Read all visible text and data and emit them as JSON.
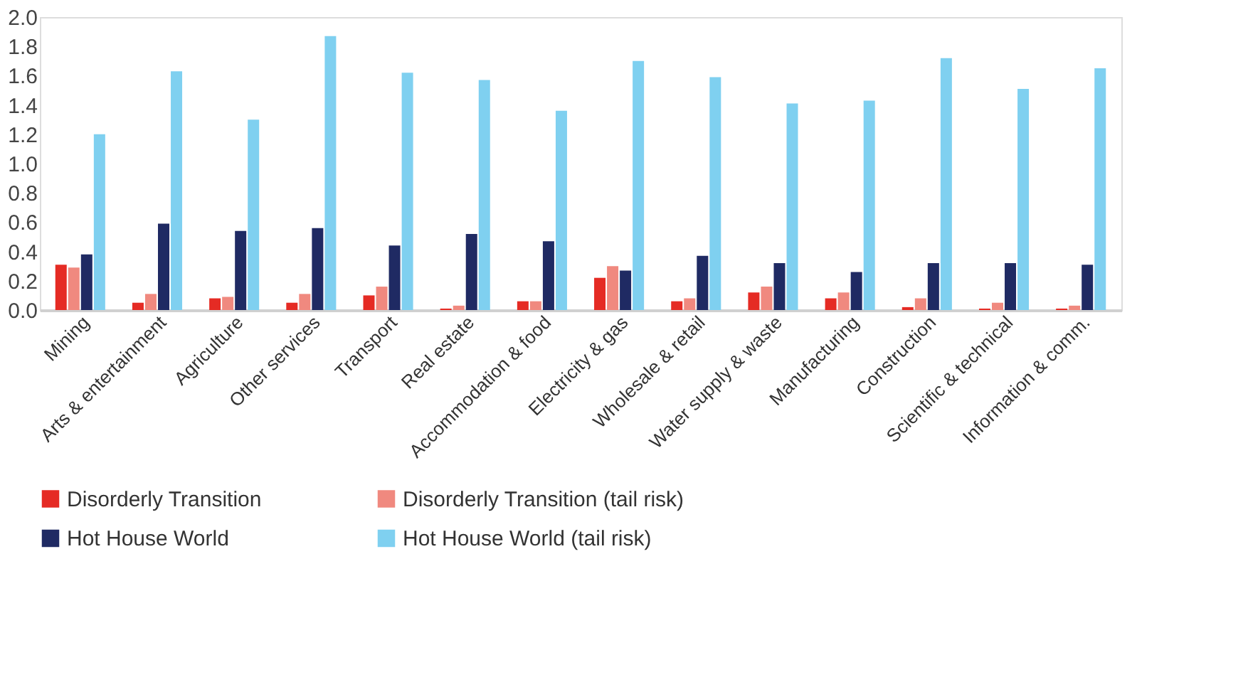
{
  "chart_data": {
    "type": "bar",
    "categories": [
      "Mining",
      "Arts & entertainment",
      "Agriculture",
      "Other services",
      "Transport",
      "Real estate",
      "Accommodation & food",
      "Electricity & gas",
      "Wholesale & retail",
      "Water supply & waste",
      "Manufacturing",
      "Construction",
      "Scientific & technical",
      "Information & comm."
    ],
    "series": [
      {
        "name": "Disorderly Transition",
        "color": "#e52b24",
        "values": [
          0.31,
          0.05,
          0.08,
          0.05,
          0.1,
          0.01,
          0.06,
          0.22,
          0.06,
          0.12,
          0.08,
          0.02,
          0.01,
          0.01
        ]
      },
      {
        "name": "Disorderly Transition (tail risk)",
        "color": "#f0897f",
        "values": [
          0.29,
          0.11,
          0.09,
          0.11,
          0.16,
          0.03,
          0.06,
          0.3,
          0.08,
          0.16,
          0.12,
          0.08,
          0.05,
          0.03
        ]
      },
      {
        "name": "Hot House World",
        "color": "#1f2a63",
        "values": [
          0.38,
          0.59,
          0.54,
          0.56,
          0.44,
          0.52,
          0.47,
          0.27,
          0.37,
          0.32,
          0.26,
          0.32,
          0.32,
          0.31
        ]
      },
      {
        "name": "Hot House World (tail risk)",
        "color": "#7fd0f0",
        "values": [
          1.2,
          1.63,
          1.3,
          1.87,
          1.62,
          1.57,
          1.36,
          1.7,
          1.59,
          1.41,
          1.43,
          1.72,
          1.51,
          1.65
        ]
      }
    ],
    "ylim": [
      0,
      2.0
    ],
    "yticks": [
      {
        "value": 0,
        "label": "0.0"
      },
      {
        "value": 0.2,
        "label": "0.2"
      },
      {
        "value": 0.4,
        "label": "0.4"
      },
      {
        "value": 0.6,
        "label": "0.6"
      },
      {
        "value": 0.8,
        "label": "0.8"
      },
      {
        "value": 1.0,
        "label": "1.0"
      },
      {
        "value": 1.2,
        "label": "1.2"
      },
      {
        "value": 1.4,
        "label": "1.4"
      },
      {
        "value": 1.6,
        "label": "1.6"
      },
      {
        "value": 1.8,
        "label": "1.8"
      },
      {
        "value": 2.0,
        "label": "2.0"
      }
    ],
    "grid": false,
    "legend": "bottom"
  }
}
